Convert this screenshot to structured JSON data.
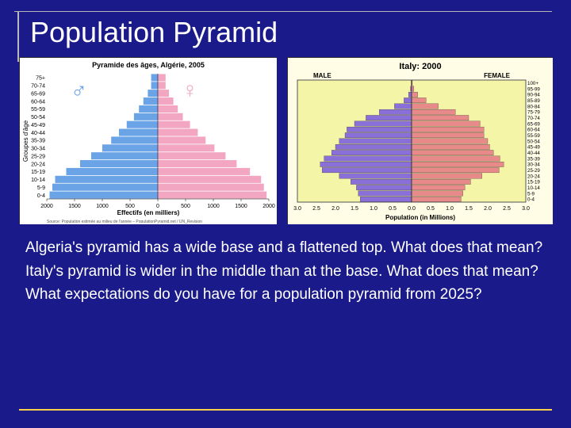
{
  "slide": {
    "title": "Population Pyramid",
    "background_color": "#1a1a8a",
    "title_color": "#ffffff",
    "title_fontsize": 36,
    "rule_color": "#b8b8b8",
    "footer_rule_color": "#ffd24a"
  },
  "algeria_chart": {
    "type": "population-pyramid",
    "title": "Pyramide des âges, Algérie, 2005",
    "title_fontsize": 9,
    "background_color": "#ffffff",
    "male_color": "#6aa3e6",
    "female_color": "#f2a6c2",
    "male_symbol": "♂",
    "female_symbol": "♀",
    "symbol_color_m": "#6aa3e6",
    "symbol_color_f": "#f2a6c2",
    "ylabel": "Groupes d'âge",
    "xlabel": "Effectifs (en milliers)",
    "source": "Source: Population estimée au milieu de l'année – PopulationPyramid.net / UN_Revision",
    "age_groups": [
      "75+",
      "70-74",
      "65-69",
      "60-64",
      "55-59",
      "50-54",
      "45-49",
      "40-44",
      "35-39",
      "30-34",
      "25-29",
      "20-24",
      "15-19",
      "10-14",
      "5-9",
      "0-4"
    ],
    "male_values": [
      120,
      120,
      180,
      260,
      340,
      430,
      560,
      700,
      840,
      1000,
      1200,
      1400,
      1650,
      1850,
      1900,
      1950
    ],
    "female_values": [
      140,
      140,
      200,
      280,
      360,
      450,
      580,
      720,
      860,
      1020,
      1220,
      1420,
      1660,
      1860,
      1910,
      1960
    ],
    "xlim": 2000,
    "xticks": [
      -2000,
      -1500,
      -1000,
      -500,
      0,
      500,
      1000,
      1500,
      2000
    ],
    "axis_fontsize": 7,
    "label_fontsize": 8
  },
  "italy_chart": {
    "type": "population-pyramid",
    "title": "Italy: 2000",
    "title_fontsize": 11,
    "background_color": "#fffde6",
    "plot_background": "#f5f5a8",
    "male_color": "#8a6fd8",
    "female_color": "#e88a8a",
    "male_label": "MALE",
    "female_label": "FEMALE",
    "xlabel": "Population (in Millions)",
    "age_groups": [
      "100+",
      "95-99",
      "90-94",
      "85-89",
      "80-84",
      "75-79",
      "70-74",
      "65-69",
      "60-64",
      "55-59",
      "50-54",
      "45-49",
      "40-44",
      "35-39",
      "30-34",
      "25-29",
      "20-24",
      "15-19",
      "10-14",
      "5-9",
      "0-4"
    ],
    "male_values": [
      0.01,
      0.03,
      0.08,
      0.2,
      0.45,
      0.85,
      1.2,
      1.5,
      1.7,
      1.75,
      1.9,
      2.0,
      2.1,
      2.3,
      2.4,
      2.35,
      1.9,
      1.6,
      1.45,
      1.4,
      1.35
    ],
    "female_values": [
      0.02,
      0.06,
      0.16,
      0.38,
      0.7,
      1.15,
      1.5,
      1.8,
      1.9,
      1.9,
      2.0,
      2.05,
      2.15,
      2.32,
      2.42,
      2.3,
      1.85,
      1.55,
      1.4,
      1.35,
      1.3
    ],
    "xlim": 3.0,
    "xticks": [
      3.0,
      2.5,
      2.0,
      1.5,
      1.0,
      0.5,
      0,
      0,
      0.5,
      1.0,
      1.5,
      2.0,
      2.5,
      3.0
    ],
    "axis_fontsize": 7,
    "label_fontsize": 8,
    "border_color": "#555"
  },
  "body": {
    "p1": "Algeria's pyramid has a wide base and a flattened top.  What does that mean?",
    "p2": "Italy's pyramid is wider in the middle than at the base.  What does that mean?",
    "p3": "What expectations do you have for a population pyramid from 2025?",
    "color": "#ffffff",
    "fontsize": 19
  }
}
